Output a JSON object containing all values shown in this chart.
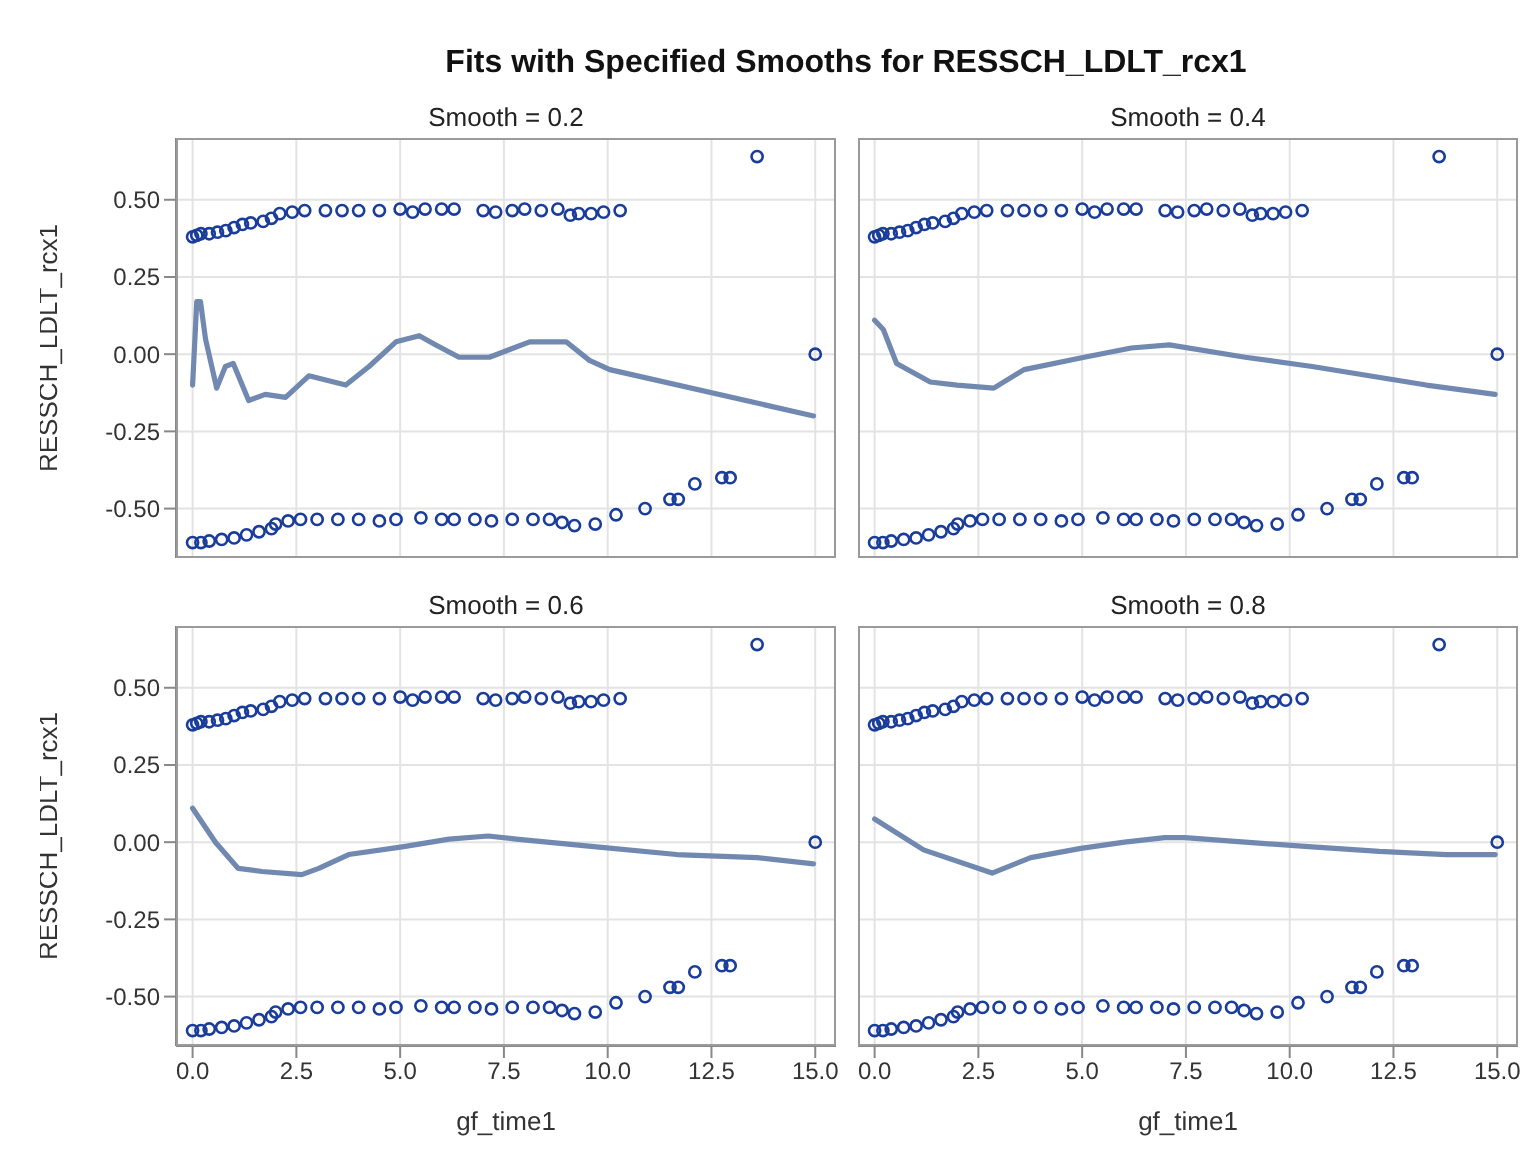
{
  "chart_data": [
    {
      "type": "scatter",
      "title": "Fits with Specified Smooths for RESSCH_LDLT_rcx1",
      "subtitle": "Smooth = 0.2",
      "ylabel": "RESSCH_LDLT_rcx1",
      "xlim": [
        -0.4,
        15.5
      ],
      "ylim": [
        -0.66,
        0.7
      ],
      "xticks": [
        0,
        2.5,
        5,
        7.5,
        10,
        12.5,
        15
      ],
      "yticks": [
        {
          "value": -0.5,
          "label": "-0.50"
        },
        {
          "value": -0.25,
          "label": "-0.25"
        },
        {
          "value": 0,
          "label": "0.00"
        },
        {
          "value": 0.25,
          "label": "0.25"
        },
        {
          "value": 0.5,
          "label": "0.50"
        }
      ],
      "grid": true,
      "tick_labels": "y",
      "marker": "circle",
      "series": [
        {
          "color": "#1a3d9c",
          "x": [
            0.0,
            0.1,
            0.2,
            0.4,
            0.6,
            0.8,
            1.0,
            1.2,
            1.4,
            1.7,
            1.9,
            2.1,
            2.4,
            2.7,
            3.2,
            3.6,
            4.0,
            4.5,
            5.0,
            5.3,
            5.6,
            6.0,
            6.3,
            7.0,
            7.3,
            7.7,
            8.0,
            8.4,
            8.8,
            9.1,
            9.3,
            9.6,
            9.9,
            10.3,
            13.6,
            15.0,
            0.0,
            0.2,
            0.4,
            0.7,
            1.0,
            1.3,
            1.6,
            1.9,
            2.0,
            2.3,
            2.6,
            3.0,
            3.5,
            4.0,
            4.5,
            4.9,
            5.5,
            6.0,
            6.3,
            6.8,
            7.2,
            7.7,
            8.2,
            8.6,
            8.9,
            9.2,
            9.7,
            10.2,
            10.9,
            11.5,
            11.7,
            12.1,
            12.75,
            12.95
          ],
          "values": [
            0.38,
            0.385,
            0.39,
            0.39,
            0.395,
            0.4,
            0.41,
            0.42,
            0.425,
            0.43,
            0.44,
            0.455,
            0.46,
            0.465,
            0.465,
            0.465,
            0.465,
            0.465,
            0.47,
            0.46,
            0.47,
            0.47,
            0.47,
            0.465,
            0.46,
            0.465,
            0.47,
            0.465,
            0.47,
            0.45,
            0.455,
            0.455,
            0.46,
            0.465,
            0.64,
            0.0,
            -0.61,
            -0.61,
            -0.605,
            -0.6,
            -0.595,
            -0.585,
            -0.575,
            -0.565,
            -0.55,
            -0.54,
            -0.535,
            -0.535,
            -0.535,
            -0.535,
            -0.54,
            -0.535,
            -0.53,
            -0.535,
            -0.535,
            -0.535,
            -0.54,
            -0.535,
            -0.535,
            -0.535,
            -0.545,
            -0.555,
            -0.55,
            -0.52,
            -0.5,
            -0.47,
            -0.47,
            -0.42,
            -0.4,
            -0.4
          ]
        },
        {
          "type": "line",
          "marker": "none",
          "color": "#7189b0",
          "x": [
            0,
            0.1,
            0.19,
            0.31,
            0.58,
            0.79,
            0.98,
            1.35,
            1.75,
            2.24,
            2.8,
            3.69,
            4.25,
            4.9,
            5.46,
            5.86,
            6.42,
            7.15,
            8.12,
            9.0,
            9.56,
            10.05,
            14.96
          ],
          "values": [
            -0.1,
            0.17,
            0.17,
            0.05,
            -0.11,
            -0.04,
            -0.03,
            -0.15,
            -0.13,
            -0.14,
            -0.07,
            -0.1,
            -0.04,
            0.04,
            0.06,
            0.03,
            -0.01,
            -0.01,
            0.04,
            0.04,
            -0.02,
            -0.05,
            -0.2
          ]
        }
      ]
    },
    {
      "type": "scatter",
      "subtitle": "Smooth = 0.4",
      "xlim": [
        -0.4,
        15.5
      ],
      "ylim": [
        -0.66,
        0.7
      ],
      "xticks": [
        0,
        2.5,
        5,
        7.5,
        10,
        12.5,
        15
      ],
      "yticks": [
        -0.5,
        -0.25,
        0,
        0.25,
        0.5
      ],
      "grid": true,
      "tick_labels": false,
      "marker": "circle",
      "series": [
        {
          "color": "#1a3d9c",
          "x": [
            0.0,
            0.1,
            0.2,
            0.4,
            0.6,
            0.8,
            1.0,
            1.2,
            1.4,
            1.7,
            1.9,
            2.1,
            2.4,
            2.7,
            3.2,
            3.6,
            4.0,
            4.5,
            5.0,
            5.3,
            5.6,
            6.0,
            6.3,
            7.0,
            7.3,
            7.7,
            8.0,
            8.4,
            8.8,
            9.1,
            9.3,
            9.6,
            9.9,
            10.3,
            13.6,
            15.0,
            0.0,
            0.2,
            0.4,
            0.7,
            1.0,
            1.3,
            1.6,
            1.9,
            2.0,
            2.3,
            2.6,
            3.0,
            3.5,
            4.0,
            4.5,
            4.9,
            5.5,
            6.0,
            6.3,
            6.8,
            7.2,
            7.7,
            8.2,
            8.6,
            8.9,
            9.2,
            9.7,
            10.2,
            10.9,
            11.5,
            11.7,
            12.1,
            12.75,
            12.95
          ],
          "values": [
            0.38,
            0.385,
            0.39,
            0.39,
            0.395,
            0.4,
            0.41,
            0.42,
            0.425,
            0.43,
            0.44,
            0.455,
            0.46,
            0.465,
            0.465,
            0.465,
            0.465,
            0.465,
            0.47,
            0.46,
            0.47,
            0.47,
            0.47,
            0.465,
            0.46,
            0.465,
            0.47,
            0.465,
            0.47,
            0.45,
            0.455,
            0.455,
            0.46,
            0.465,
            0.64,
            0.0,
            -0.61,
            -0.61,
            -0.605,
            -0.6,
            -0.595,
            -0.585,
            -0.575,
            -0.565,
            -0.55,
            -0.54,
            -0.535,
            -0.535,
            -0.535,
            -0.535,
            -0.54,
            -0.535,
            -0.53,
            -0.535,
            -0.535,
            -0.535,
            -0.54,
            -0.535,
            -0.535,
            -0.535,
            -0.545,
            -0.555,
            -0.55,
            -0.52,
            -0.5,
            -0.47,
            -0.47,
            -0.42,
            -0.4,
            -0.4
          ]
        },
        {
          "type": "line",
          "marker": "none",
          "color": "#7189b0",
          "x": [
            0,
            0.21,
            0.53,
            1.34,
            1.98,
            2.87,
            3.6,
            5.05,
            6.18,
            7.1,
            8.93,
            10.54,
            13.29,
            14.95
          ],
          "values": [
            0.11,
            0.08,
            -0.03,
            -0.09,
            -0.1,
            -0.11,
            -0.05,
            -0.01,
            0.02,
            0.03,
            -0.01,
            -0.04,
            -0.1,
            -0.13
          ]
        }
      ]
    },
    {
      "type": "scatter",
      "subtitle": "Smooth = 0.6",
      "xlabel": "gf_time1",
      "ylabel": "RESSCH_LDLT_rcx1",
      "xlim": [
        -0.4,
        15.5
      ],
      "ylim": [
        -0.66,
        0.7
      ],
      "xticks": [
        {
          "value": 0,
          "label": "0.0"
        },
        {
          "value": 2.5,
          "label": "2.5"
        },
        {
          "value": 5,
          "label": "5.0"
        },
        {
          "value": 7.5,
          "label": "7.5"
        },
        {
          "value": 10,
          "label": "10.0"
        },
        {
          "value": 12.5,
          "label": "12.5"
        },
        {
          "value": 15,
          "label": "15.0"
        }
      ],
      "yticks": [
        {
          "value": -0.5,
          "label": "-0.50"
        },
        {
          "value": -0.25,
          "label": "-0.25"
        },
        {
          "value": 0,
          "label": "0.00"
        },
        {
          "value": 0.25,
          "label": "0.25"
        },
        {
          "value": 0.5,
          "label": "0.50"
        }
      ],
      "grid": true,
      "marker": "circle",
      "series": [
        {
          "color": "#1a3d9c",
          "x": [
            0.0,
            0.1,
            0.2,
            0.4,
            0.6,
            0.8,
            1.0,
            1.2,
            1.4,
            1.7,
            1.9,
            2.1,
            2.4,
            2.7,
            3.2,
            3.6,
            4.0,
            4.5,
            5.0,
            5.3,
            5.6,
            6.0,
            6.3,
            7.0,
            7.3,
            7.7,
            8.0,
            8.4,
            8.8,
            9.1,
            9.3,
            9.6,
            9.9,
            10.3,
            13.6,
            15.0,
            0.0,
            0.2,
            0.4,
            0.7,
            1.0,
            1.3,
            1.6,
            1.9,
            2.0,
            2.3,
            2.6,
            3.0,
            3.5,
            4.0,
            4.5,
            4.9,
            5.5,
            6.0,
            6.3,
            6.8,
            7.2,
            7.7,
            8.2,
            8.6,
            8.9,
            9.2,
            9.7,
            10.2,
            10.9,
            11.5,
            11.7,
            12.1,
            12.75,
            12.95
          ],
          "values": [
            0.38,
            0.385,
            0.39,
            0.39,
            0.395,
            0.4,
            0.41,
            0.42,
            0.425,
            0.43,
            0.44,
            0.455,
            0.46,
            0.465,
            0.465,
            0.465,
            0.465,
            0.465,
            0.47,
            0.46,
            0.47,
            0.47,
            0.47,
            0.465,
            0.46,
            0.465,
            0.47,
            0.465,
            0.47,
            0.45,
            0.455,
            0.455,
            0.46,
            0.465,
            0.64,
            0.0,
            -0.61,
            -0.61,
            -0.605,
            -0.6,
            -0.595,
            -0.585,
            -0.575,
            -0.565,
            -0.55,
            -0.54,
            -0.535,
            -0.535,
            -0.535,
            -0.535,
            -0.54,
            -0.535,
            -0.53,
            -0.535,
            -0.535,
            -0.535,
            -0.54,
            -0.535,
            -0.535,
            -0.535,
            -0.545,
            -0.555,
            -0.55,
            -0.52,
            -0.5,
            -0.47,
            -0.47,
            -0.42,
            -0.4,
            -0.4
          ]
        },
        {
          "type": "line",
          "marker": "none",
          "color": "#7189b0",
          "x": [
            0,
            0.55,
            1.1,
            1.67,
            2.63,
            3.04,
            3.76,
            5.05,
            6.18,
            7.12,
            7.8,
            9.73,
            11.66,
            13.6,
            14.96
          ],
          "values": [
            0.11,
            0.0,
            -0.085,
            -0.095,
            -0.105,
            -0.085,
            -0.04,
            -0.015,
            0.01,
            0.02,
            0.01,
            -0.015,
            -0.04,
            -0.05,
            -0.07
          ]
        }
      ]
    },
    {
      "type": "scatter",
      "subtitle": "Smooth = 0.8",
      "xlabel": "gf_time1",
      "xlim": [
        -0.4,
        15.5
      ],
      "ylim": [
        -0.66,
        0.7
      ],
      "xticks": [
        {
          "value": 0,
          "label": "0.0"
        },
        {
          "value": 2.5,
          "label": "2.5"
        },
        {
          "value": 5,
          "label": "5.0"
        },
        {
          "value": 7.5,
          "label": "7.5"
        },
        {
          "value": 10,
          "label": "10.0"
        },
        {
          "value": 12.5,
          "label": "12.5"
        },
        {
          "value": 15,
          "label": "15.0"
        }
      ],
      "yticks": [
        -0.5,
        -0.25,
        0,
        0.25,
        0.5
      ],
      "grid": true,
      "tick_labels": "x",
      "marker": "circle",
      "series": [
        {
          "color": "#1a3d9c",
          "x": [
            0.0,
            0.1,
            0.2,
            0.4,
            0.6,
            0.8,
            1.0,
            1.2,
            1.4,
            1.7,
            1.9,
            2.1,
            2.4,
            2.7,
            3.2,
            3.6,
            4.0,
            4.5,
            5.0,
            5.3,
            5.6,
            6.0,
            6.3,
            7.0,
            7.3,
            7.7,
            8.0,
            8.4,
            8.8,
            9.1,
            9.3,
            9.6,
            9.9,
            10.3,
            13.6,
            15.0,
            0.0,
            0.2,
            0.4,
            0.7,
            1.0,
            1.3,
            1.6,
            1.9,
            2.0,
            2.3,
            2.6,
            3.0,
            3.5,
            4.0,
            4.5,
            4.9,
            5.5,
            6.0,
            6.3,
            6.8,
            7.2,
            7.7,
            8.2,
            8.6,
            8.9,
            9.2,
            9.7,
            10.2,
            10.9,
            11.5,
            11.7,
            12.1,
            12.75,
            12.95
          ],
          "values": [
            0.38,
            0.385,
            0.39,
            0.39,
            0.395,
            0.4,
            0.41,
            0.42,
            0.425,
            0.43,
            0.44,
            0.455,
            0.46,
            0.465,
            0.465,
            0.465,
            0.465,
            0.465,
            0.47,
            0.46,
            0.47,
            0.47,
            0.47,
            0.465,
            0.46,
            0.465,
            0.47,
            0.465,
            0.47,
            0.45,
            0.455,
            0.455,
            0.46,
            0.465,
            0.64,
            0.0,
            -0.61,
            -0.61,
            -0.605,
            -0.6,
            -0.595,
            -0.585,
            -0.575,
            -0.565,
            -0.55,
            -0.54,
            -0.535,
            -0.535,
            -0.535,
            -0.535,
            -0.54,
            -0.535,
            -0.53,
            -0.535,
            -0.535,
            -0.535,
            -0.54,
            -0.535,
            -0.535,
            -0.535,
            -0.545,
            -0.555,
            -0.55,
            -0.52,
            -0.5,
            -0.47,
            -0.47,
            -0.42,
            -0.4,
            -0.4
          ]
        },
        {
          "type": "line",
          "marker": "none",
          "color": "#7189b0",
          "x": [
            0,
            1.18,
            2.83,
            3.76,
            4.97,
            6.02,
            6.99,
            7.47,
            8.93,
            10.54,
            12.16,
            13.77,
            14.95
          ],
          "values": [
            0.075,
            -0.025,
            -0.1,
            -0.05,
            -0.02,
            0.0,
            0.015,
            0.015,
            0.0,
            -0.015,
            -0.03,
            -0.04,
            -0.04
          ]
        }
      ]
    }
  ]
}
